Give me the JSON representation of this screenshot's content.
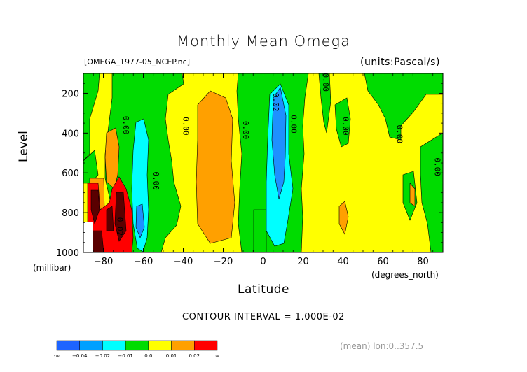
{
  "chart_data": {
    "type": "heatmap",
    "title": "Monthly Mean Omega",
    "file_label": "[OMEGA_1977-05_NCEP.nc]",
    "units_label": "(units:Pascal/s)",
    "xlabel": "Latitude",
    "x_unit": "(degrees_north)",
    "ylabel": "Level",
    "y_unit": "(millibar)",
    "x_ticks": [
      "-80",
      "-60",
      "-40",
      "-20",
      "0",
      "20",
      "40",
      "60",
      "80"
    ],
    "y_ticks": [
      "200",
      "400",
      "600",
      "800",
      "1000"
    ],
    "xlim": [
      -90,
      90
    ],
    "ylim": [
      1000,
      100
    ],
    "contour_interval_text": "CONTOUR INTERVAL = 1.000E-02",
    "mean_text": "(mean) lon:0..357.5",
    "contour_labels": [
      "0.00",
      "0.00",
      "0.00",
      "0.00",
      "0.02",
      "0.00",
      "0.00",
      "0.00",
      "0.00",
      "0.00",
      "0.02"
    ],
    "colorbar": {
      "tick_labels": [
        "-∞",
        "−0.04",
        "−0.02",
        "−0.01",
        "0.0",
        "0.01",
        "0.02",
        "∞"
      ],
      "colors": [
        "#1e64ff",
        "#00a0ff",
        "#00ffff",
        "#00dc00",
        "#ffff00",
        "#ffa000",
        "#ff0000"
      ]
    },
    "colors": {
      "yellow": "#ffff00",
      "green": "#00dc00",
      "orange": "#ffa000",
      "cyan": "#00ffff",
      "blue": "#1e90ff",
      "red": "#ff0000",
      "darkred": "#5a0000"
    }
  }
}
